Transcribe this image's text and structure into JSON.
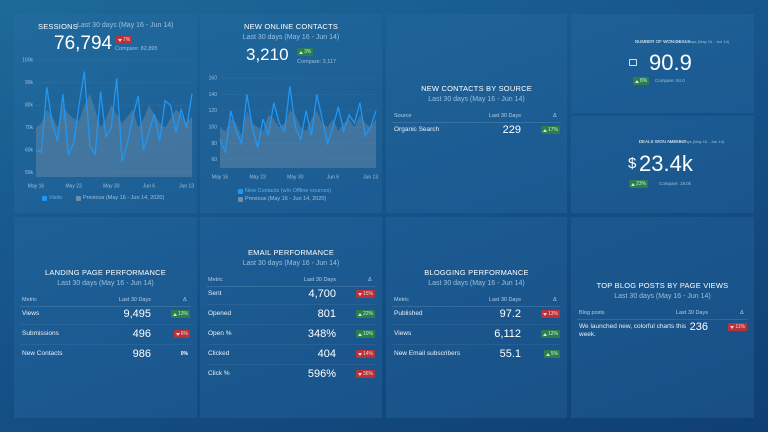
{
  "widgets": [
    {
      "kind": "kpi_chart",
      "title": "SESSIONS",
      "period": "Last 30 days (May 16 - Jun 14)",
      "value": "76,794",
      "change": "7%",
      "direction": "down",
      "compare": "Compare: 82,895",
      "chart": {
        "type": "line",
        "categories": [
          "May 16",
          null,
          null,
          null,
          null,
          null,
          null,
          "May 23",
          null,
          null,
          null,
          null,
          null,
          null,
          "May 30",
          null,
          null,
          null,
          null,
          null,
          null,
          "Jun 6",
          null,
          null,
          null,
          null,
          null,
          null,
          "Jun 13",
          null
        ],
        "ylim": [
          48000,
          101000
        ],
        "yticks": [
          {
            "value": 50000,
            "label": "50k"
          },
          {
            "value": 60000,
            "label": "60k"
          },
          {
            "value": 70000,
            "label": "70k"
          },
          {
            "value": 80000,
            "label": "80k"
          },
          {
            "value": 90000,
            "label": "90k"
          },
          {
            "value": 100000,
            "label": "100k"
          }
        ],
        "series": [
          {
            "name": "Visits",
            "color": "#2196f3",
            "type": "line",
            "values": [
              60000,
              59000,
              88000,
              72000,
              64000,
              85000,
              58000,
              63000,
              80000,
              95000,
              62000,
              58000,
              86000,
              66000,
              70000,
              92000,
              55000,
              63000,
              75000,
              84000,
              60000,
              68000,
              76000,
              64000,
              82000,
              80000,
              68000,
              78000,
              70000,
              85000
            ]
          },
          {
            "name": "Previous (May 16 - Jun 14, 2020)",
            "color": "#6f8ea8",
            "type": "area",
            "values": [
              70000,
              72000,
              78000,
              75000,
              70000,
              80000,
              76000,
              74000,
              73000,
              80000,
              85000,
              78000,
              70000,
              74000,
              80000,
              76000,
              72000,
              75000,
              78000,
              70000,
              74000,
              80000,
              76000,
              72000,
              70000,
              74000,
              78000,
              76000,
              72000,
              75000
            ]
          }
        ]
      }
    },
    {
      "kind": "kpi_chart",
      "title": "NEW ONLINE CONTACTS",
      "period": "Last 30 days (May 16 - Jun 14)",
      "value": "3,210",
      "change": "3%",
      "direction": "up",
      "compare": "Compare: 3,117",
      "chart": {
        "type": "line",
        "categories": [
          "May 16",
          null,
          null,
          null,
          null,
          null,
          null,
          "May 23",
          null,
          null,
          null,
          null,
          null,
          null,
          "May 30",
          null,
          null,
          null,
          null,
          null,
          null,
          "Jun 6",
          null,
          null,
          null,
          null,
          null,
          null,
          "Jun 13",
          null
        ],
        "ylim": [
          50,
          170
        ],
        "yticks": [
          60,
          80,
          100,
          120,
          140,
          160
        ],
        "series": [
          {
            "name": "New Contacts (w/o Offline sources)",
            "color": "#2196f3",
            "type": "line",
            "values": [
              85,
              70,
              120,
              95,
              80,
              140,
              100,
              75,
              110,
              90,
              130,
              105,
              95,
              150,
              100,
              85,
              120,
              90,
              140,
              110,
              80,
              100,
              125,
              95,
              115,
              105,
              130,
              90,
              100,
              120
            ]
          },
          {
            "name": "Previous (May 16 - Jun 14, 2020)",
            "color": "#6f8ea8",
            "type": "area",
            "values": [
              100,
              95,
              110,
              105,
              90,
              120,
              105,
              100,
              95,
              115,
              110,
              100,
              105,
              120,
              115,
              100,
              95,
              110,
              120,
              105,
              100,
              110,
              95,
              105,
              110,
              100,
              115,
              105,
              100,
              110
            ]
          }
        ]
      }
    },
    {
      "kind": "table",
      "title": "NEW CONTACTS BY SOURCE",
      "period": "Last 30 days (May 16 - Jun 14)",
      "columns": [
        "Source",
        "Last 30 Days",
        "Δ"
      ],
      "rows": [
        [
          "Organic Search",
          "229",
          "17%"
        ]
      ],
      "directions": [
        "up"
      ]
    },
    {
      "kind": "kpi",
      "title": "NUMBER OF WON DEALS",
      "period": "Last 30 days (May 16 - Jun 14)",
      "value": "90.9",
      "change": "8%",
      "direction": "up",
      "compare": "Compare: 84.0"
    },
    {
      "kind": "kpi",
      "title": "DEALS WON AMOUNT",
      "period": "Last 30 days (May 16 - Jun 14)",
      "prefix": "$",
      "value": "23.4k",
      "change": "23%",
      "direction": "up",
      "compare": "Compare: 19.0k"
    },
    {
      "kind": "table",
      "title": "LANDING PAGE PERFORMANCE",
      "period": "Last 30 days (May 16 - Jun 14)",
      "columns": [
        "Metric",
        "Last 30 Days",
        "Δ"
      ],
      "rows": [
        [
          "Views",
          "9,495",
          "13%"
        ],
        [
          "Submissions",
          "496",
          "6%"
        ],
        [
          "New Contacts",
          "986",
          "0%"
        ]
      ],
      "directions": [
        "up",
        "down",
        "none"
      ]
    },
    {
      "kind": "table",
      "title": "EMAIL PERFORMANCE",
      "period": "Last 30 days (May 16 - Jun 14)",
      "columns": [
        "Metric",
        "Last 30 Days",
        "Δ"
      ],
      "rows": [
        [
          "Sent",
          "4,700",
          "15%"
        ],
        [
          "Opened",
          "801",
          "22%"
        ],
        [
          "Open %",
          "348%",
          "10%"
        ],
        [
          "Clicked",
          "404",
          "14%"
        ],
        [
          "Click %",
          "596%",
          "36%"
        ]
      ],
      "directions": [
        "down",
        "up",
        "up",
        "down",
        "down"
      ]
    },
    {
      "kind": "table",
      "title": "BLOGGING PERFORMANCE",
      "period": "Last 30 days (May 16 - Jun 14)",
      "columns": [
        "Metric",
        "Last 30 Days",
        "Δ"
      ],
      "rows": [
        [
          "Published",
          "97.2",
          "13%"
        ],
        [
          "Views",
          "6,112",
          "12%"
        ],
        [
          "New Email subscribers",
          "55.1",
          "5%"
        ]
      ],
      "directions": [
        "down",
        "up",
        "up"
      ]
    },
    {
      "kind": "table",
      "title": "TOP BLOG POSTS BY PAGE VIEWS",
      "period": "Last 30 days (May 16 - Jun 14)",
      "columns": [
        "Blog posts",
        "Last 30 Days",
        "Δ"
      ],
      "rows": [
        [
          "We launched new, colorful charts this week.",
          "236",
          "11%"
        ]
      ],
      "directions": [
        "down"
      ]
    }
  ]
}
